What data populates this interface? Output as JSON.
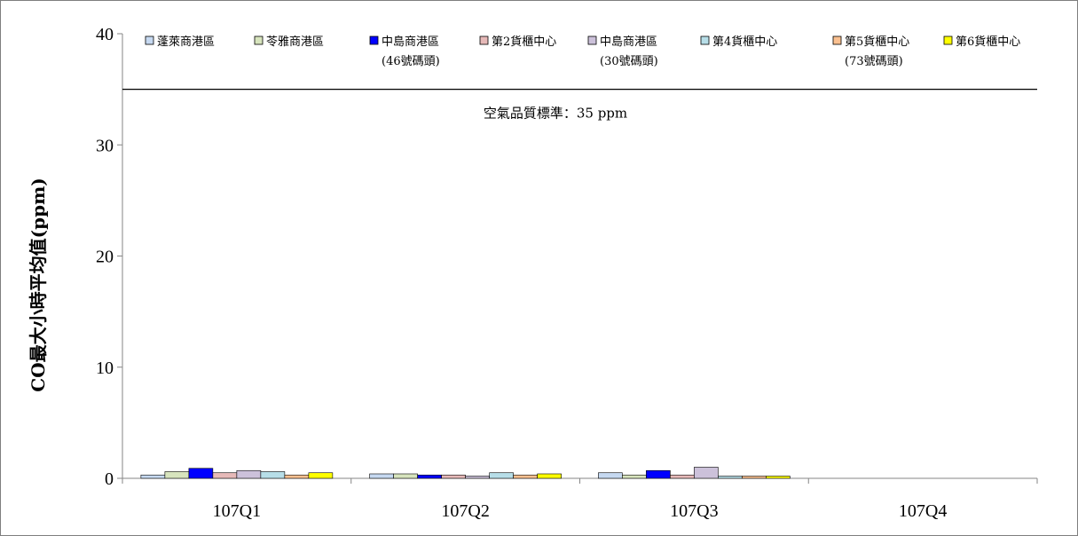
{
  "chart_data": {
    "type": "bar",
    "categories": [
      "107Q1",
      "107Q2",
      "107Q3",
      "107Q4"
    ],
    "ylabel": "CO最大小時平均值(ppm)",
    "ylim": [
      0,
      40
    ],
    "yticks": [
      0,
      10,
      20,
      30,
      40
    ],
    "legend_position": "top",
    "series": [
      {
        "name": "蓬萊商港區",
        "name_line2": "",
        "color": "#c6d9f1",
        "values": [
          0.3,
          0.4,
          0.5,
          null
        ]
      },
      {
        "name": "苓雅商港區",
        "name_line2": "",
        "color": "#d7e4bd",
        "values": [
          0.6,
          0.4,
          0.3,
          null
        ]
      },
      {
        "name": "中島商港區",
        "name_line2": "(46號碼頭)",
        "color": "#0000ff",
        "values": [
          0.9,
          0.3,
          0.7,
          null
        ]
      },
      {
        "name": "第2貨櫃中心",
        "name_line2": "",
        "color": "#e6b9b8",
        "values": [
          0.5,
          0.3,
          0.3,
          null
        ]
      },
      {
        "name": "中島商港區",
        "name_line2": "(30號碼頭)",
        "color": "#ccc1da",
        "values": [
          0.7,
          0.2,
          1.0,
          null
        ]
      },
      {
        "name": "第4貨櫃中心",
        "name_line2": "",
        "color": "#b7dee8",
        "values": [
          0.6,
          0.5,
          0.2,
          null
        ]
      },
      {
        "name": "第5貨櫃中心",
        "name_line2": "(73號碼頭)",
        "color": "#fac090",
        "values": [
          0.3,
          0.3,
          0.2,
          null
        ]
      },
      {
        "name": "第6貨櫃中心",
        "name_line2": "",
        "color": "#ffff00",
        "values": [
          0.5,
          0.4,
          0.2,
          null
        ]
      }
    ],
    "reference_line": {
      "value": 35,
      "label": "空氣品質標準：35 ppm"
    }
  }
}
